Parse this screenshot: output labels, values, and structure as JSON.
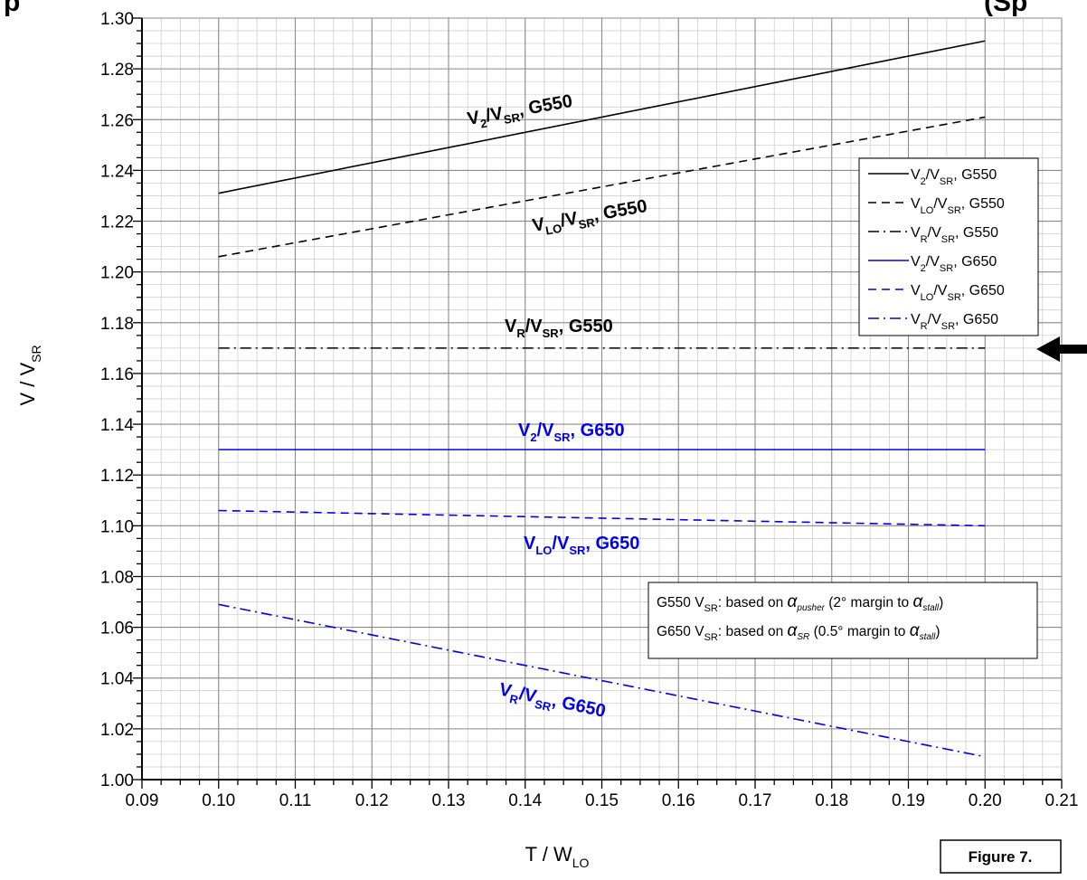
{
  "chart_data": {
    "type": "line",
    "title_fragment_left": "p",
    "title_fragment_right": "(Sp",
    "xlabel": {
      "base": "T / W",
      "sub": "LO"
    },
    "ylabel": {
      "base": "V / V",
      "sub": "SR"
    },
    "xlim": [
      0.09,
      0.21
    ],
    "ylim": [
      1.0,
      1.3
    ],
    "x_ticks": [
      "0.09",
      "0.10",
      "0.11",
      "0.12",
      "0.13",
      "0.14",
      "0.15",
      "0.16",
      "0.17",
      "0.18",
      "0.19",
      "0.20",
      "0.21"
    ],
    "y_ticks": [
      "1.00",
      "1.02",
      "1.04",
      "1.06",
      "1.08",
      "1.10",
      "1.12",
      "1.14",
      "1.16",
      "1.18",
      "1.20",
      "1.22",
      "1.24",
      "1.26",
      "1.28",
      "1.30"
    ],
    "grid": true,
    "colors": {
      "g550": "#000000",
      "g650": "#0000ee"
    },
    "series": [
      {
        "id": "v2_g550",
        "speed": "V",
        "sub": "2",
        "over": "/V",
        "over_sub": "SR",
        "tail": ", G550",
        "color": "#000000",
        "dash": "solid",
        "x": [
          0.1,
          0.2
        ],
        "y": [
          1.231,
          1.291
        ]
      },
      {
        "id": "vlo_g550",
        "speed": "V",
        "sub": "LO",
        "over": "/V",
        "over_sub": "SR",
        "tail": ", G550",
        "color": "#000000",
        "dash": "dashed",
        "x": [
          0.1,
          0.2
        ],
        "y": [
          1.206,
          1.261
        ]
      },
      {
        "id": "vr_g550",
        "speed": "V",
        "sub": "R",
        "over": "/V",
        "over_sub": "SR",
        "tail": ", G550",
        "color": "#000000",
        "dash": "dashdot",
        "x": [
          0.1,
          0.2
        ],
        "y": [
          1.17,
          1.17
        ]
      },
      {
        "id": "v2_g650",
        "speed": "V",
        "sub": "2",
        "over": "/V",
        "over_sub": "SR",
        "tail": ", G650",
        "color": "#0000ee",
        "dash": "solid",
        "x": [
          0.1,
          0.2
        ],
        "y": [
          1.13,
          1.13
        ]
      },
      {
        "id": "vlo_g650",
        "speed": "V",
        "sub": "LO",
        "over": "/V",
        "over_sub": "SR",
        "tail": ", G650",
        "color": "#0000ee",
        "dash": "dashed",
        "x": [
          0.1,
          0.15,
          0.2
        ],
        "y": [
          1.106,
          1.103,
          1.1
        ]
      },
      {
        "id": "vr_g650",
        "speed": "V",
        "sub": "R",
        "over": "/V",
        "over_sub": "SR",
        "tail": ", G650",
        "color": "#0000ee",
        "dash": "dashdot",
        "x": [
          0.1,
          0.2
        ],
        "y": [
          1.069,
          1.009
        ]
      }
    ],
    "legend_placement": "upper-right",
    "notes": [
      {
        "pre": "G550 V",
        "pre_sub": "SR",
        "mid": ": based on ",
        "alpha": "α",
        "alpha_sub": "pusher",
        "post": " (2° margin to ",
        "alpha2": "α",
        "alpha2_sub": "stall",
        "end": ")"
      },
      {
        "pre": "G650 V",
        "pre_sub": "SR",
        "mid": ": based on ",
        "alpha": "α",
        "alpha_sub": "SR",
        "post": " (0.5° margin to ",
        "alpha2": "α",
        "alpha2_sub": "stall",
        "end": ")"
      }
    ],
    "figure_label": "Figure 7."
  }
}
